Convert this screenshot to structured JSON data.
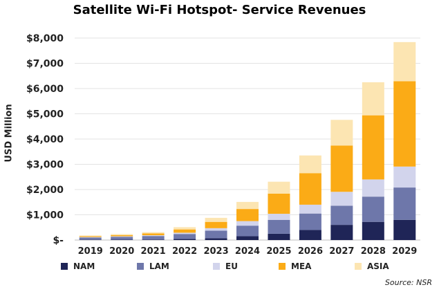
{
  "chart_data": {
    "type": "bar",
    "stacked": true,
    "title": "Satellite Wi-Fi Hotspot- Service Revenues",
    "ylabel": "USD Million",
    "xlabel": "",
    "ylim": [
      0,
      8000
    ],
    "yticks": [
      0,
      1000,
      2000,
      3000,
      4000,
      5000,
      6000,
      7000,
      8000
    ],
    "ytick_labels": [
      "$-",
      "$1,000",
      "$2,000",
      "$3,000",
      "$4,000",
      "$5,000",
      "$6,000",
      "$7,000",
      "$8,000"
    ],
    "grid": true,
    "legend_position": "bottom",
    "categories": [
      "2019",
      "2020",
      "2021",
      "2022",
      "2023",
      "2024",
      "2025",
      "2026",
      "2027",
      "2028",
      "2029"
    ],
    "series": [
      {
        "name": "NAM",
        "color": "#1f2557",
        "values": [
          10,
          15,
          20,
          40,
          70,
          150,
          250,
          400,
          600,
          720,
          800
        ]
      },
      {
        "name": "LAM",
        "color": "#6e77aa",
        "values": [
          90,
          110,
          140,
          200,
          300,
          420,
          550,
          650,
          760,
          1000,
          1280
        ]
      },
      {
        "name": "EU",
        "color": "#d2d4ec",
        "values": [
          20,
          25,
          30,
          50,
          100,
          180,
          240,
          350,
          550,
          680,
          830
        ]
      },
      {
        "name": "MEA",
        "color": "#fbab16",
        "values": [
          30,
          45,
          70,
          130,
          250,
          480,
          800,
          1250,
          1830,
          2540,
          3380
        ]
      },
      {
        "name": "ASIA",
        "color": "#fce5b2",
        "values": [
          30,
          40,
          50,
          90,
          160,
          280,
          470,
          700,
          1020,
          1310,
          1550
        ]
      }
    ],
    "source": "Source: NSR"
  }
}
